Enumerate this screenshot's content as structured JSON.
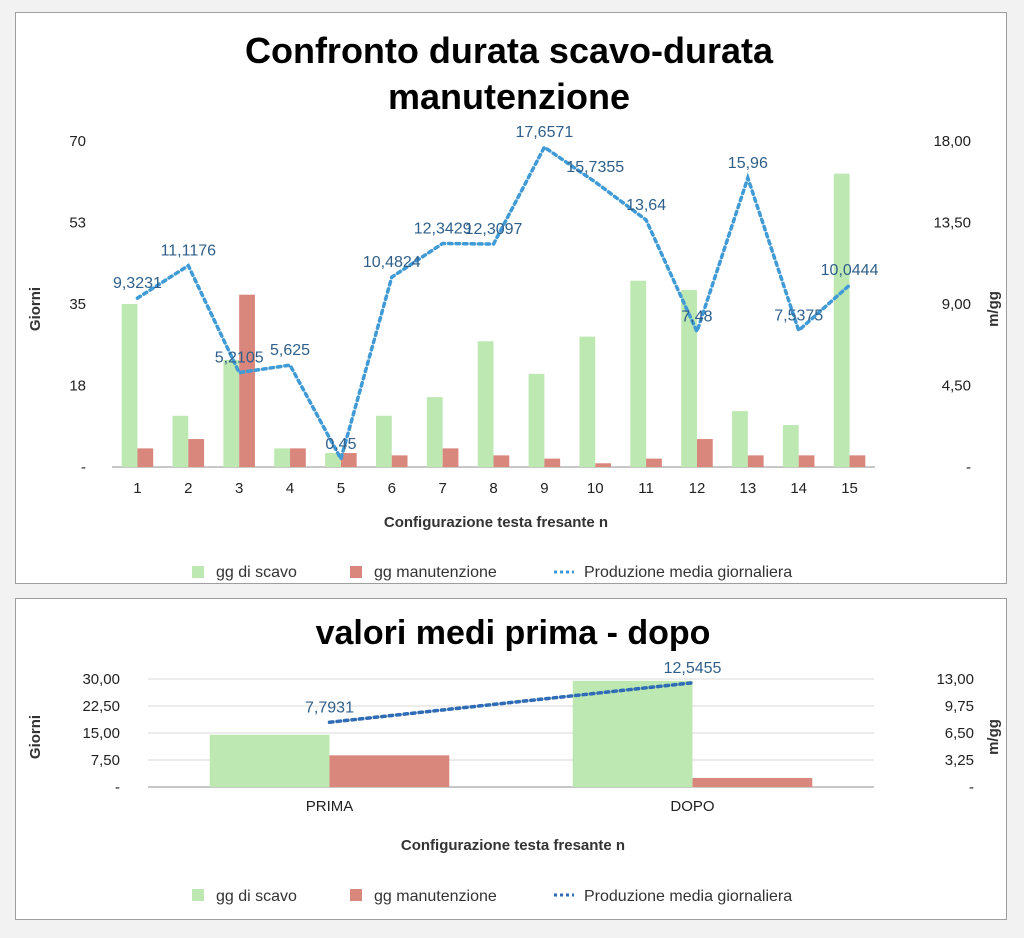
{
  "colors": {
    "scavo": "#bde8b2",
    "manutenzione": "#d9877d",
    "produzione_top": "#3f9ad6",
    "produzione_bottom": "#2f6cb5",
    "grid": "#d9d9d9"
  },
  "chart_data": [
    {
      "type": "bar",
      "title_line1": "Confronto durata scavo-durata",
      "title_line2": "manutenzione",
      "xlabel": "Configurazione testa fresante n",
      "ylabel": "Giorni",
      "y2label": "m/gg",
      "ylim": [
        0,
        70
      ],
      "y2lim": [
        0,
        18
      ],
      "yticks": [
        "-",
        "18",
        "35",
        "53",
        "70"
      ],
      "y2ticks": [
        "-",
        "4,50",
        "9,00",
        "13,50",
        "18,00"
      ],
      "grid": false,
      "legend_position": "bottom",
      "categories": [
        "1",
        "2",
        "3",
        "4",
        "5",
        "6",
        "7",
        "8",
        "9",
        "10",
        "11",
        "12",
        "13",
        "14",
        "15"
      ],
      "series": [
        {
          "name": "gg di scavo",
          "kind": "bar",
          "axis": "left",
          "values": [
            35,
            11,
            23,
            4,
            3,
            11,
            15,
            27,
            20,
            28,
            40,
            38,
            12,
            9,
            63
          ]
        },
        {
          "name": "gg manutenzione",
          "kind": "bar",
          "axis": "left",
          "values": [
            4,
            6,
            37,
            4,
            3,
            2.5,
            4,
            2.5,
            1.8,
            0.8,
            1.8,
            6,
            2.5,
            2.5,
            2.5
          ]
        },
        {
          "name": "Produzione media giornaliera",
          "kind": "line",
          "axis": "right",
          "values": [
            9.3231,
            11.1176,
            5.2105,
            5.625,
            0.45,
            10.4824,
            12.3429,
            12.3097,
            17.6571,
            15.7355,
            13.64,
            7.48,
            15.96,
            7.5375,
            10.0444
          ],
          "labels": [
            "9,3231",
            "11,1176",
            "5,2105",
            "5,625",
            "0,45",
            "10,4824",
            "12,3429",
            "12,3097",
            "17,6571",
            "15,7355",
            "13,64",
            "7,48",
            "15,96",
            "7,5375",
            "10,0444"
          ]
        }
      ]
    },
    {
      "type": "bar",
      "title_line1": "valori medi prima - dopo",
      "xlabel": "Configurazione testa fresante n",
      "ylabel": "Giorni",
      "y2label": "m/gg",
      "ylim": [
        0,
        30
      ],
      "y2lim": [
        0,
        13
      ],
      "yticks": [
        "-",
        "7,50",
        "15,00",
        "22,50",
        "30,00"
      ],
      "y2ticks": [
        "-",
        "3,25",
        "6,50",
        "9,75",
        "13,00"
      ],
      "grid": true,
      "legend_position": "bottom",
      "categories": [
        "PRIMA",
        "DOPO"
      ],
      "series": [
        {
          "name": "gg di scavo",
          "kind": "bar",
          "axis": "left",
          "values": [
            14.5,
            29.5
          ]
        },
        {
          "name": "gg manutenzione",
          "kind": "bar",
          "axis": "left",
          "values": [
            8.8,
            2.5
          ]
        },
        {
          "name": "Produzione media giornaliera",
          "kind": "line",
          "axis": "right",
          "values": [
            7.7931,
            12.5455
          ],
          "labels": [
            "7,7931",
            "12,5455"
          ]
        }
      ]
    }
  ]
}
